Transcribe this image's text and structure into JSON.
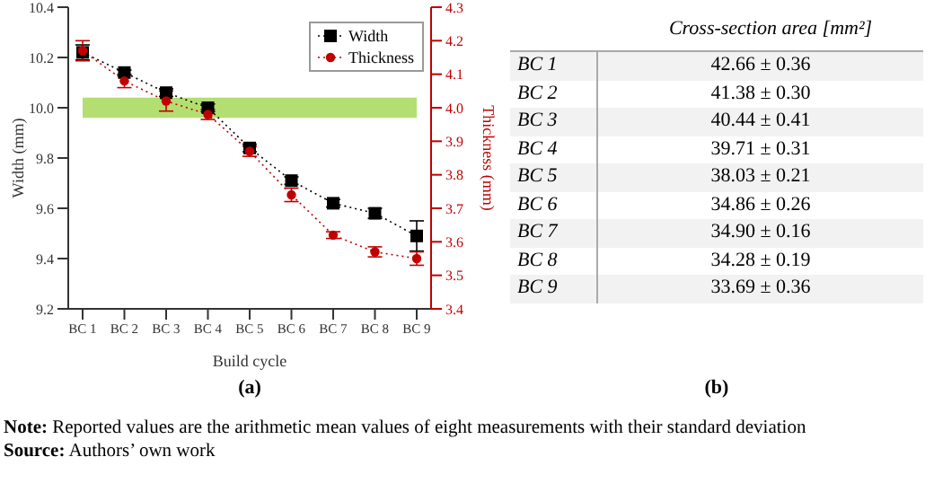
{
  "chart_data": [
    {
      "type": "line",
      "categories": [
        "BC 1",
        "BC 2",
        "BC 3",
        "BC 4",
        "BC 5",
        "BC 6",
        "BC 7",
        "BC 8",
        "BC 9"
      ],
      "xlabel": "Build cycle",
      "ylabel": "Width (mm)",
      "y2label": "Thickness (mm)",
      "series": [
        {
          "name": "Width",
          "color": "#000000",
          "marker": "square",
          "values": [
            10.22,
            10.14,
            10.06,
            10.0,
            9.84,
            9.71,
            9.62,
            9.58,
            9.49
          ],
          "errors": [
            0.03,
            0.01,
            0.015,
            0.015,
            0.015,
            0.015,
            0.015,
            0.02,
            0.06
          ]
        },
        {
          "name": "Thickness",
          "color": "#c00000",
          "marker": "circle",
          "axis": "y2",
          "values": [
            4.17,
            4.08,
            4.02,
            3.98,
            3.87,
            3.74,
            3.62,
            3.57,
            3.55
          ],
          "errors": [
            0.03,
            0.02,
            0.03,
            0.015,
            0.015,
            0.02,
            0.01,
            0.015,
            0.02
          ]
        }
      ],
      "ylim": [
        9.2,
        10.4
      ],
      "yticks": [
        9.2,
        9.4,
        9.6,
        9.8,
        {
          "value": 10,
          "label": "10.0"
        },
        10.2,
        10.4
      ],
      "y2lim": [
        3.4,
        4.3
      ],
      "y2ticks": [
        3.4,
        3.5,
        3.6,
        3.7,
        3.8,
        3.9,
        {
          "value": 4,
          "label": "4.0"
        },
        4.1,
        4.2,
        4.3
      ],
      "bands": [
        {
          "axis": "y2",
          "from": 3.97,
          "to": 4.03,
          "color": "#b3de72"
        }
      ],
      "line_style": "dotted",
      "grid": false,
      "legend": "top right",
      "annotations": [
        "(a)"
      ]
    },
    {
      "type": "other",
      "title": "Cross-section area [mm²]",
      "categories": [
        "BC 1",
        "BC 2",
        "BC 3",
        "BC 4",
        "BC 5",
        "BC 6",
        "BC 7",
        "BC 8",
        "BC 9"
      ],
      "value_labels": [
        "42.66 ± 0.36",
        "41.38 ± 0.30",
        "40.44 ± 0.41",
        "39.71 ± 0.31",
        "38.03 ± 0.21",
        "34.86 ± 0.26",
        "34.90 ± 0.16",
        "34.28 ± 0.19",
        "33.69 ± 0.36"
      ],
      "annotations": [
        "(b)",
        "Note: Reported values are the arithmetic mean values of eight measurements with their standard deviation",
        "Source: Authors’ own work"
      ]
    }
  ]
}
